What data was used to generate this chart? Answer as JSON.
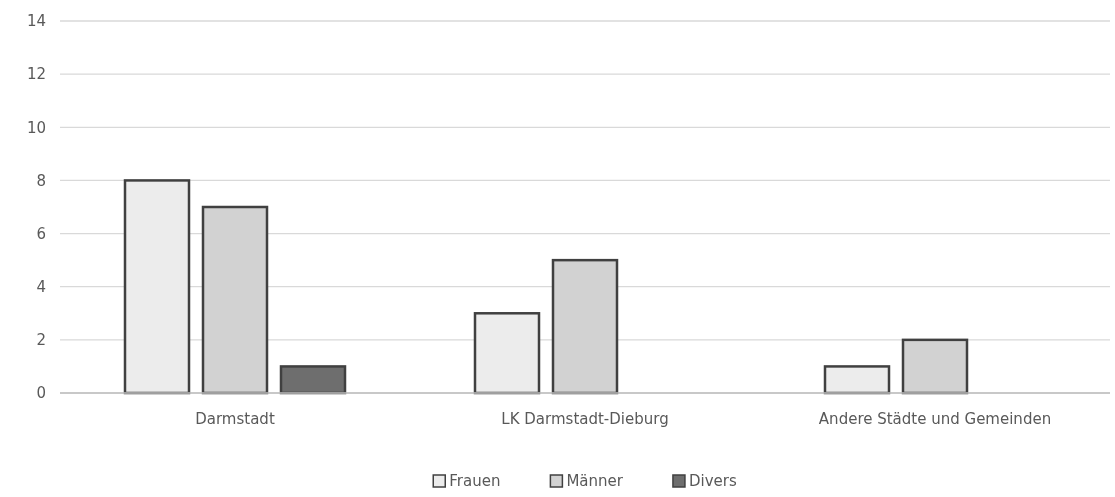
{
  "chart_data": {
    "type": "bar",
    "categories": [
      "Darmstadt",
      "LK Darmstadt-Dieburg",
      "Andere Städte und Gemeinden"
    ],
    "series": [
      {
        "name": "Frauen",
        "color": "#ececec",
        "values": [
          8,
          3,
          1
        ]
      },
      {
        "name": "Männer",
        "color": "#d2d2d2",
        "values": [
          7,
          5,
          2
        ]
      },
      {
        "name": "Divers",
        "color": "#6e6e6e",
        "values": [
          1,
          0,
          0
        ]
      }
    ],
    "ylim": [
      0,
      14
    ],
    "yticks": [
      0,
      2,
      4,
      6,
      8,
      10,
      12,
      14
    ],
    "grid": "y",
    "legend": "bottom"
  }
}
